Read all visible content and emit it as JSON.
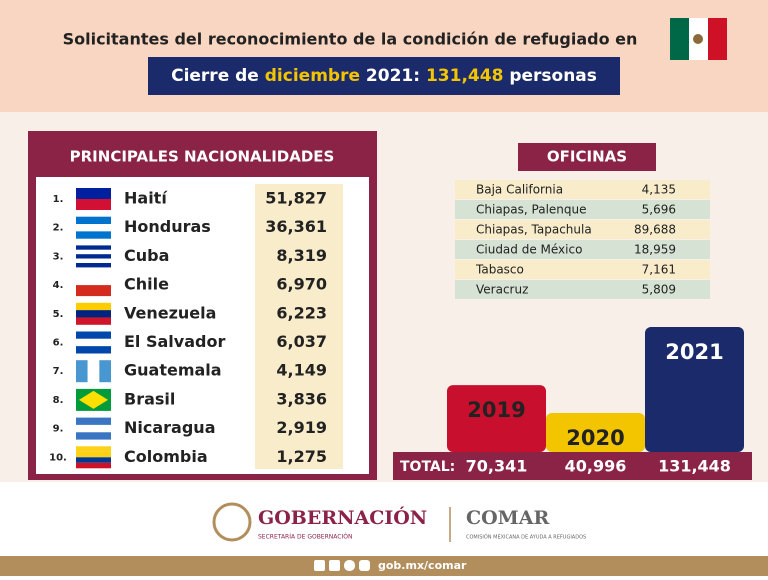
{
  "header": {
    "title": "Solicitantes del reconocimiento de la condición de refugiado en",
    "subtitle_parts": [
      "Cierre de",
      "diciembre",
      "2021:",
      "131,448",
      "personas"
    ]
  },
  "nationalities": {
    "title": "PRINCIPALES NACIONALIDADES",
    "rows": [
      [
        "1.",
        "Haití",
        "51,827"
      ],
      [
        "2.",
        "Honduras",
        "36,361"
      ],
      [
        "3.",
        "Cuba",
        "8,319"
      ],
      [
        "4.",
        "Chile",
        "6,970"
      ],
      [
        "5.",
        "Venezuela",
        "6,223"
      ],
      [
        "6.",
        "El Salvador",
        "6,037"
      ],
      [
        "7.",
        "Guatemala",
        "4,149"
      ],
      [
        "8.",
        "Brasil",
        "3,836"
      ],
      [
        "9.",
        "Nicaragua",
        "2,919"
      ],
      [
        "10.",
        "Colombia",
        "1,275"
      ]
    ]
  },
  "offices": {
    "title": "OFICINAS",
    "rows": [
      [
        "Baja California",
        "4,135"
      ],
      [
        "Chiapas, Palenque",
        "5,696"
      ],
      [
        "Chiapas, Tapachula",
        "89,688"
      ],
      [
        "Ciudad de México",
        "18,959"
      ],
      [
        "Tabasco",
        "7,161"
      ],
      [
        "Veracruz",
        "5,809"
      ]
    ]
  },
  "chart_data": {
    "type": "bar",
    "categories": [
      "2019",
      "2020",
      "2021"
    ],
    "values": [
      70341,
      40996,
      131448
    ],
    "value_labels": [
      "70,341",
      "40,996",
      "131,448"
    ],
    "colors": [
      "#c8102e",
      "#f2c500",
      "#1b2a6b"
    ],
    "total_label": "TOTAL:"
  },
  "footer": {
    "org": "GOBERNACIÓN",
    "org_sub": "SECRETARÍA DE GOBERNACIÓN",
    "agency": "COMAR",
    "agency_sub": "COMISIÓN MEXICANA DE AYUDA A REFUGIADOS",
    "url": "gob.mx/comar"
  }
}
